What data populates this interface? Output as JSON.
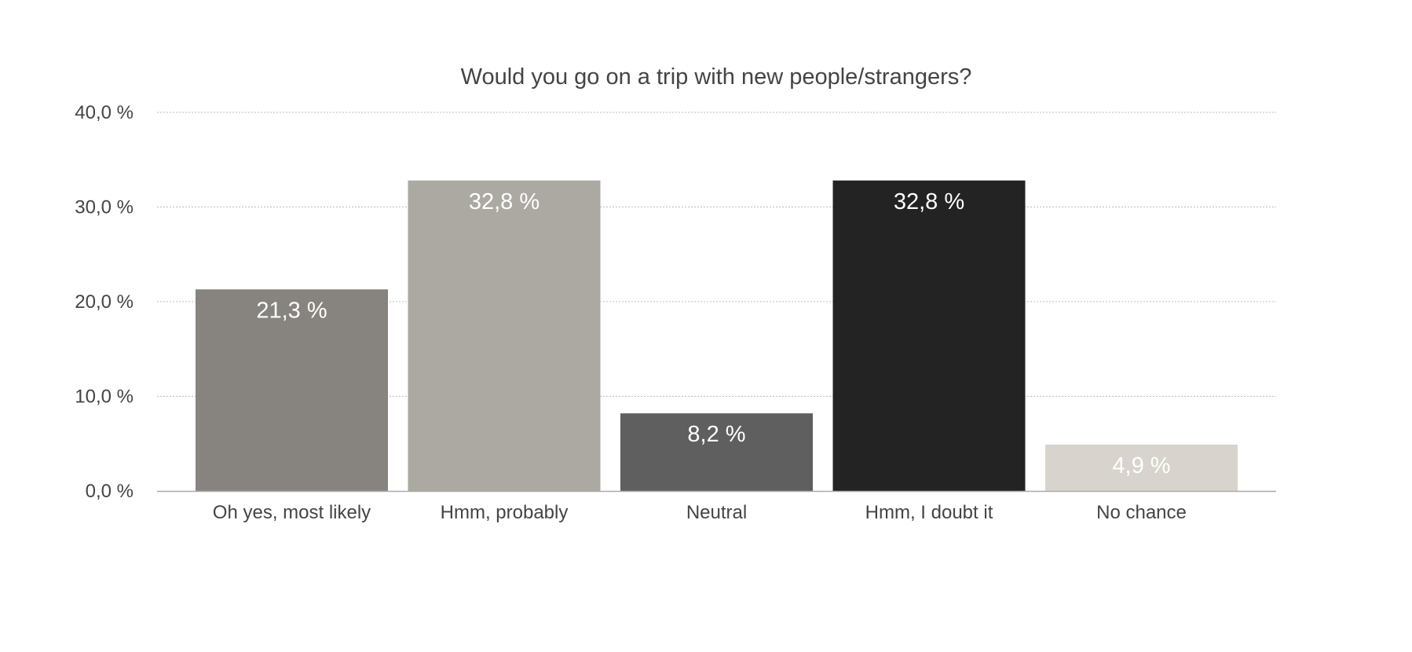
{
  "chart_data": {
    "type": "bar",
    "title": "Would you go on a trip with new people/strangers?",
    "xlabel": "",
    "ylabel": "",
    "categories": [
      "Oh yes, most likely",
      "Hmm, probably",
      "Neutral",
      "Hmm, I doubt it",
      "No chance"
    ],
    "values": [
      21.3,
      32.8,
      8.2,
      32.8,
      4.9
    ],
    "data_labels": [
      "21,3 %",
      "32,8 %",
      "8,2 %",
      "32,8 %",
      "4,9 %"
    ],
    "bar_colors": [
      "#87847f",
      "#aca9a2",
      "#5f5f5f",
      "#232323",
      "#d8d4cd"
    ],
    "data_label_color": "#ffffff",
    "ylim": [
      0,
      40
    ],
    "y_ticks": [
      0,
      10,
      20,
      30,
      40
    ],
    "y_tick_labels": [
      "0,0 %",
      "10,0 %",
      "20,0 %",
      "30,0 %",
      "40,0 %"
    ],
    "grid": true,
    "gridline_color": "#bbbbbb",
    "axis_color": "#aaaaaa",
    "legend": "none"
  }
}
